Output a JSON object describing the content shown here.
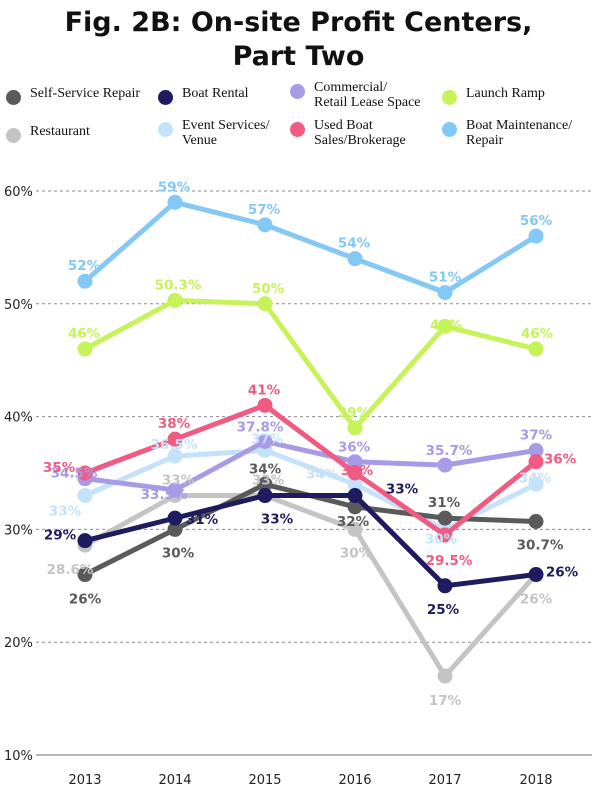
{
  "title_line1": "Fig. 2B: On-site Profit Centers,",
  "title_line2": "Part Two",
  "legend": [
    {
      "label": "Self-Service Repair",
      "color": "#5a5a5a"
    },
    {
      "label": "Boat Rental",
      "color": "#1e1c5e"
    },
    {
      "label": "Commercial/\nRetail Lease Space",
      "color": "#a89ae6"
    },
    {
      "label": "Launch Ramp",
      "color": "#c6f25a"
    },
    {
      "label": "Restaurant",
      "color": "#c4c4c4"
    },
    {
      "label": "Event Services/\nVenue",
      "color": "#c4e3fa"
    },
    {
      "label": "Used Boat\nSales/Brokerage",
      "color": "#ef5b82"
    },
    {
      "label": "Boat Maintenance/\nRepair",
      "color": "#84c8f5"
    }
  ],
  "chart_data": {
    "type": "line",
    "title": "Fig. 2B: On-site Profit Centers, Part Two",
    "xlabel": "",
    "ylabel": "",
    "x": [
      "2013",
      "2014",
      "2015",
      "2016",
      "2017",
      "2018"
    ],
    "ylim": [
      10,
      60
    ],
    "yticks": [
      "10%",
      "20%",
      "30%",
      "40%",
      "50%",
      "60%"
    ],
    "grid": true,
    "legend_position": "top",
    "series": [
      {
        "name": "Boat Maintenance/Repair",
        "color": "#84c8f5",
        "values": [
          52,
          59,
          57,
          54,
          51,
          56
        ],
        "labels": [
          "52%",
          "59%",
          "57%",
          "54%",
          "51%",
          "56%"
        ]
      },
      {
        "name": "Launch Ramp",
        "color": "#c6f25a",
        "values": [
          46,
          50.3,
          50,
          39,
          48,
          46
        ],
        "labels": [
          "46%",
          "50.3%",
          "50%",
          "39%",
          "48%",
          "46%"
        ]
      },
      {
        "name": "Restaurant",
        "color": "#c4c4c4",
        "values": [
          28.6,
          33,
          33,
          30,
          17,
          26
        ],
        "labels": [
          "28.6%",
          "33%",
          "33%",
          "30%",
          "17%",
          "26%"
        ]
      },
      {
        "name": "Event Services/Venue",
        "color": "#c4e3fa",
        "values": [
          33,
          36.5,
          37,
          34,
          30,
          34
        ],
        "labels": [
          "33%",
          "36.5%",
          "37%",
          "34%",
          "30%",
          "34%"
        ]
      },
      {
        "name": "Self-Service Repair",
        "color": "#5a5a5a",
        "values": [
          26,
          30,
          34,
          32,
          31,
          30.7
        ],
        "labels": [
          "26%",
          "30%",
          "34%",
          "32%",
          "31%",
          "30.7%"
        ]
      },
      {
        "name": "Commercial/Retail Lease Space",
        "color": "#a89ae6",
        "values": [
          34.5,
          33.5,
          37.8,
          36,
          35.7,
          37
        ],
        "labels": [
          "34.5%",
          "33.5%",
          "37.8%",
          "36%",
          "35.7%",
          "37%"
        ]
      },
      {
        "name": "Used Boat Sales/Brokerage",
        "color": "#ef5b82",
        "values": [
          35,
          38,
          41,
          35,
          29.5,
          36
        ],
        "labels": [
          "35%",
          "38%",
          "41%",
          "35%",
          "29.5%",
          "36%"
        ]
      },
      {
        "name": "Boat Rental",
        "color": "#1e1c5e",
        "values": [
          29,
          31,
          33,
          33,
          25,
          26
        ],
        "labels": [
          "29%",
          "31%",
          "33%",
          "33%",
          "25%",
          "26%"
        ]
      }
    ]
  }
}
